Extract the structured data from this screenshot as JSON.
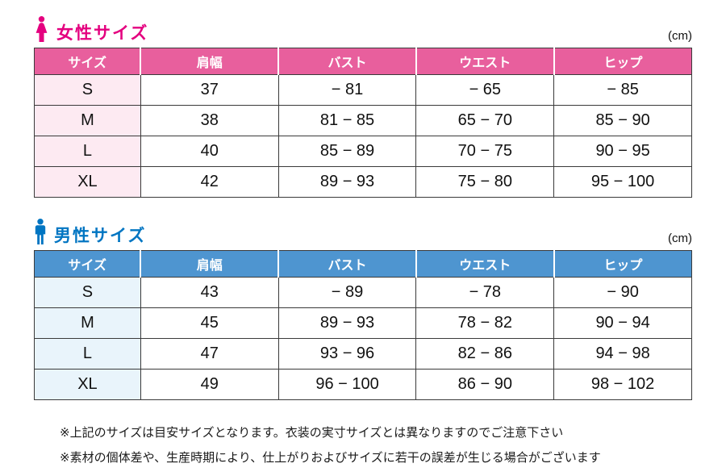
{
  "women": {
    "title": "女性サイズ",
    "unit": "(cm)",
    "headers": [
      "サイズ",
      "肩幅",
      "バスト",
      "ウエスト",
      "ヒップ"
    ],
    "rows": [
      [
        "S",
        "37",
        "− 81",
        "− 65",
        "− 85"
      ],
      [
        "M",
        "38",
        "81 − 85",
        "65 − 70",
        "85 − 90"
      ],
      [
        "L",
        "40",
        "85 − 89",
        "70 − 75",
        "90 − 95"
      ],
      [
        "XL",
        "42",
        "89 − 93",
        "75 − 80",
        "95 − 100"
      ]
    ],
    "colors": {
      "title": "#e4007f",
      "header_bg": "#e85f9d",
      "size_col_bg": "#fdeaf2"
    }
  },
  "men": {
    "title": "男性サイズ",
    "unit": "(cm)",
    "headers": [
      "サイズ",
      "肩幅",
      "バスト",
      "ウエスト",
      "ヒップ"
    ],
    "rows": [
      [
        "S",
        "43",
        "− 89",
        "− 78",
        "− 90"
      ],
      [
        "M",
        "45",
        "89 − 93",
        "78 − 82",
        "90 − 94"
      ],
      [
        "L",
        "47",
        "93 − 96",
        "82 − 86",
        "94 − 98"
      ],
      [
        "XL",
        "49",
        "96 − 100",
        "86 − 90",
        "98 − 102"
      ]
    ],
    "colors": {
      "title": "#0075c2",
      "header_bg": "#4e95d0",
      "size_col_bg": "#e9f4fb"
    }
  },
  "notes": [
    "※上記のサイズは目安サイズとなります。衣装の実寸サイズとは異なりますのでご注意下さい",
    "※素材の個体差や、生産時期により、仕上がりおよびサイズに若干の誤差が生じる場合がございます"
  ],
  "chart_data": [
    {
      "type": "table",
      "title": "女性サイズ",
      "unit": "cm",
      "columns": [
        "サイズ",
        "肩幅",
        "バスト",
        "ウエスト",
        "ヒップ"
      ],
      "rows": [
        [
          "S",
          37,
          "−81",
          "−65",
          "−85"
        ],
        [
          "M",
          38,
          "81−85",
          "65−70",
          "85−90"
        ],
        [
          "L",
          40,
          "85−89",
          "70−75",
          "90−95"
        ],
        [
          "XL",
          42,
          "89−93",
          "75−80",
          "95−100"
        ]
      ]
    },
    {
      "type": "table",
      "title": "男性サイズ",
      "unit": "cm",
      "columns": [
        "サイズ",
        "肩幅",
        "バスト",
        "ウエスト",
        "ヒップ"
      ],
      "rows": [
        [
          "S",
          43,
          "−89",
          "−78",
          "−90"
        ],
        [
          "M",
          45,
          "89−93",
          "78−82",
          "90−94"
        ],
        [
          "L",
          47,
          "93−96",
          "82−86",
          "94−98"
        ],
        [
          "XL",
          49,
          "96−100",
          "86−90",
          "98−102"
        ]
      ]
    }
  ]
}
